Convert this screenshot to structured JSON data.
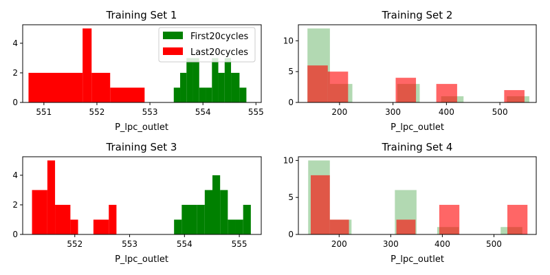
{
  "chart_data": [
    {
      "type": "bar",
      "title": "Training Set 1",
      "xlabel": "P_lpc_outlet",
      "ylabel": "",
      "xlim": [
        550.6,
        555.1
      ],
      "ylim": [
        0,
        5.25
      ],
      "xticks": [
        551,
        552,
        553,
        554,
        555
      ],
      "yticks": [
        0,
        2,
        4
      ],
      "legend": {
        "placement": "top-right",
        "entries": [
          "First20cycles",
          "Last20cycles"
        ]
      },
      "series": [
        {
          "name": "First20cycles",
          "color": "#008000",
          "alpha": 1.0,
          "bins": [
            {
              "x0": 553.45,
              "x1": 553.57,
              "y": 1
            },
            {
              "x0": 553.57,
              "x1": 553.69,
              "y": 2
            },
            {
              "x0": 553.69,
              "x1": 553.81,
              "y": 3
            },
            {
              "x0": 553.81,
              "x1": 553.93,
              "y": 3
            },
            {
              "x0": 553.93,
              "x1": 554.05,
              "y": 1
            },
            {
              "x0": 554.05,
              "x1": 554.17,
              "y": 1
            },
            {
              "x0": 554.17,
              "x1": 554.29,
              "y": 3
            },
            {
              "x0": 554.29,
              "x1": 554.41,
              "y": 2
            },
            {
              "x0": 554.41,
              "x1": 554.53,
              "y": 3
            },
            {
              "x0": 554.53,
              "x1": 554.69,
              "y": 2
            },
            {
              "x0": 554.69,
              "x1": 554.82,
              "y": 1
            }
          ]
        },
        {
          "name": "Last20cycles",
          "color": "#ff0000",
          "alpha": 1.0,
          "bins": [
            {
              "x0": 550.71,
              "x1": 551.73,
              "y": 2
            },
            {
              "x0": 551.73,
              "x1": 551.9,
              "y": 5
            },
            {
              "x0": 551.9,
              "x1": 552.25,
              "y": 2
            },
            {
              "x0": 552.25,
              "x1": 552.9,
              "y": 1
            }
          ]
        }
      ]
    },
    {
      "type": "bar",
      "title": "Training Set 2",
      "xlabel": "P_lpc_outlet",
      "ylabel": "",
      "xlim": [
        123,
        568
      ],
      "ylim": [
        0,
        12.6
      ],
      "xticks": [
        200,
        300,
        400,
        500
      ],
      "yticks": [
        0,
        5,
        10
      ],
      "series": [
        {
          "name": "",
          "color": "#008000",
          "alpha": 0.3,
          "bins": [
            {
              "x0": 140,
              "x1": 182,
              "y": 12
            },
            {
              "x0": 182,
              "x1": 224,
              "y": 3
            },
            {
              "x0": 308,
              "x1": 350,
              "y": 3
            },
            {
              "x0": 390,
              "x1": 432,
              "y": 1
            },
            {
              "x0": 513,
              "x1": 555,
              "y": 1
            }
          ]
        },
        {
          "name": "",
          "color": "#ff0000",
          "alpha": 0.6,
          "bins": [
            {
              "x0": 140,
              "x1": 178,
              "y": 6
            },
            {
              "x0": 178,
              "x1": 216,
              "y": 5
            },
            {
              "x0": 305,
              "x1": 343,
              "y": 4
            },
            {
              "x0": 381,
              "x1": 420,
              "y": 3
            },
            {
              "x0": 508,
              "x1": 546,
              "y": 2
            }
          ]
        }
      ]
    },
    {
      "type": "bar",
      "title": "Training Set 3",
      "xlabel": "P_lpc_outlet",
      "ylabel": "",
      "xlim": [
        551.05,
        555.4
      ],
      "ylim": [
        0,
        5.25
      ],
      "xticks": [
        552,
        553,
        554,
        555
      ],
      "yticks": [
        0,
        2,
        4
      ],
      "series": [
        {
          "name": "",
          "color": "#008000",
          "alpha": 1.0,
          "bins": [
            {
              "x0": 553.81,
              "x1": 553.95,
              "y": 1
            },
            {
              "x0": 553.95,
              "x1": 554.09,
              "y": 2
            },
            {
              "x0": 554.09,
              "x1": 554.23,
              "y": 2
            },
            {
              "x0": 554.23,
              "x1": 554.37,
              "y": 2
            },
            {
              "x0": 554.37,
              "x1": 554.51,
              "y": 3
            },
            {
              "x0": 554.51,
              "x1": 554.65,
              "y": 4
            },
            {
              "x0": 554.65,
              "x1": 554.79,
              "y": 3
            },
            {
              "x0": 554.79,
              "x1": 554.93,
              "y": 1
            },
            {
              "x0": 554.93,
              "x1": 555.07,
              "y": 1
            },
            {
              "x0": 555.07,
              "x1": 555.21,
              "y": 2
            }
          ]
        },
        {
          "name": "",
          "color": "#ff0000",
          "alpha": 1.0,
          "bins": [
            {
              "x0": 551.22,
              "x1": 551.5,
              "y": 3
            },
            {
              "x0": 551.5,
              "x1": 551.64,
              "y": 5
            },
            {
              "x0": 551.64,
              "x1": 551.92,
              "y": 2
            },
            {
              "x0": 551.92,
              "x1": 552.06,
              "y": 1
            },
            {
              "x0": 552.34,
              "x1": 552.62,
              "y": 1
            },
            {
              "x0": 552.62,
              "x1": 552.76,
              "y": 2
            }
          ]
        }
      ]
    },
    {
      "type": "bar",
      "title": "Training Set 4",
      "xlabel": "P_lpc_outlet",
      "ylabel": "",
      "xlim": [
        121,
        582
      ],
      "ylim": [
        0,
        10.5
      ],
      "xticks": [
        200,
        300,
        400,
        500
      ],
      "yticks": [
        0,
        5,
        10
      ],
      "series": [
        {
          "name": "",
          "color": "#008000",
          "alpha": 0.3,
          "bins": [
            {
              "x0": 140,
              "x1": 182,
              "y": 10
            },
            {
              "x0": 182,
              "x1": 224,
              "y": 2
            },
            {
              "x0": 308,
              "x1": 350,
              "y": 6
            },
            {
              "x0": 390,
              "x1": 432,
              "y": 1
            },
            {
              "x0": 513,
              "x1": 555,
              "y": 1
            }
          ]
        },
        {
          "name": "",
          "color": "#ff0000",
          "alpha": 0.6,
          "bins": [
            {
              "x0": 145,
              "x1": 182,
              "y": 8
            },
            {
              "x0": 182,
              "x1": 219,
              "y": 2
            },
            {
              "x0": 311,
              "x1": 348,
              "y": 2
            },
            {
              "x0": 394,
              "x1": 433,
              "y": 4
            },
            {
              "x0": 526,
              "x1": 565,
              "y": 4
            }
          ]
        }
      ]
    }
  ]
}
